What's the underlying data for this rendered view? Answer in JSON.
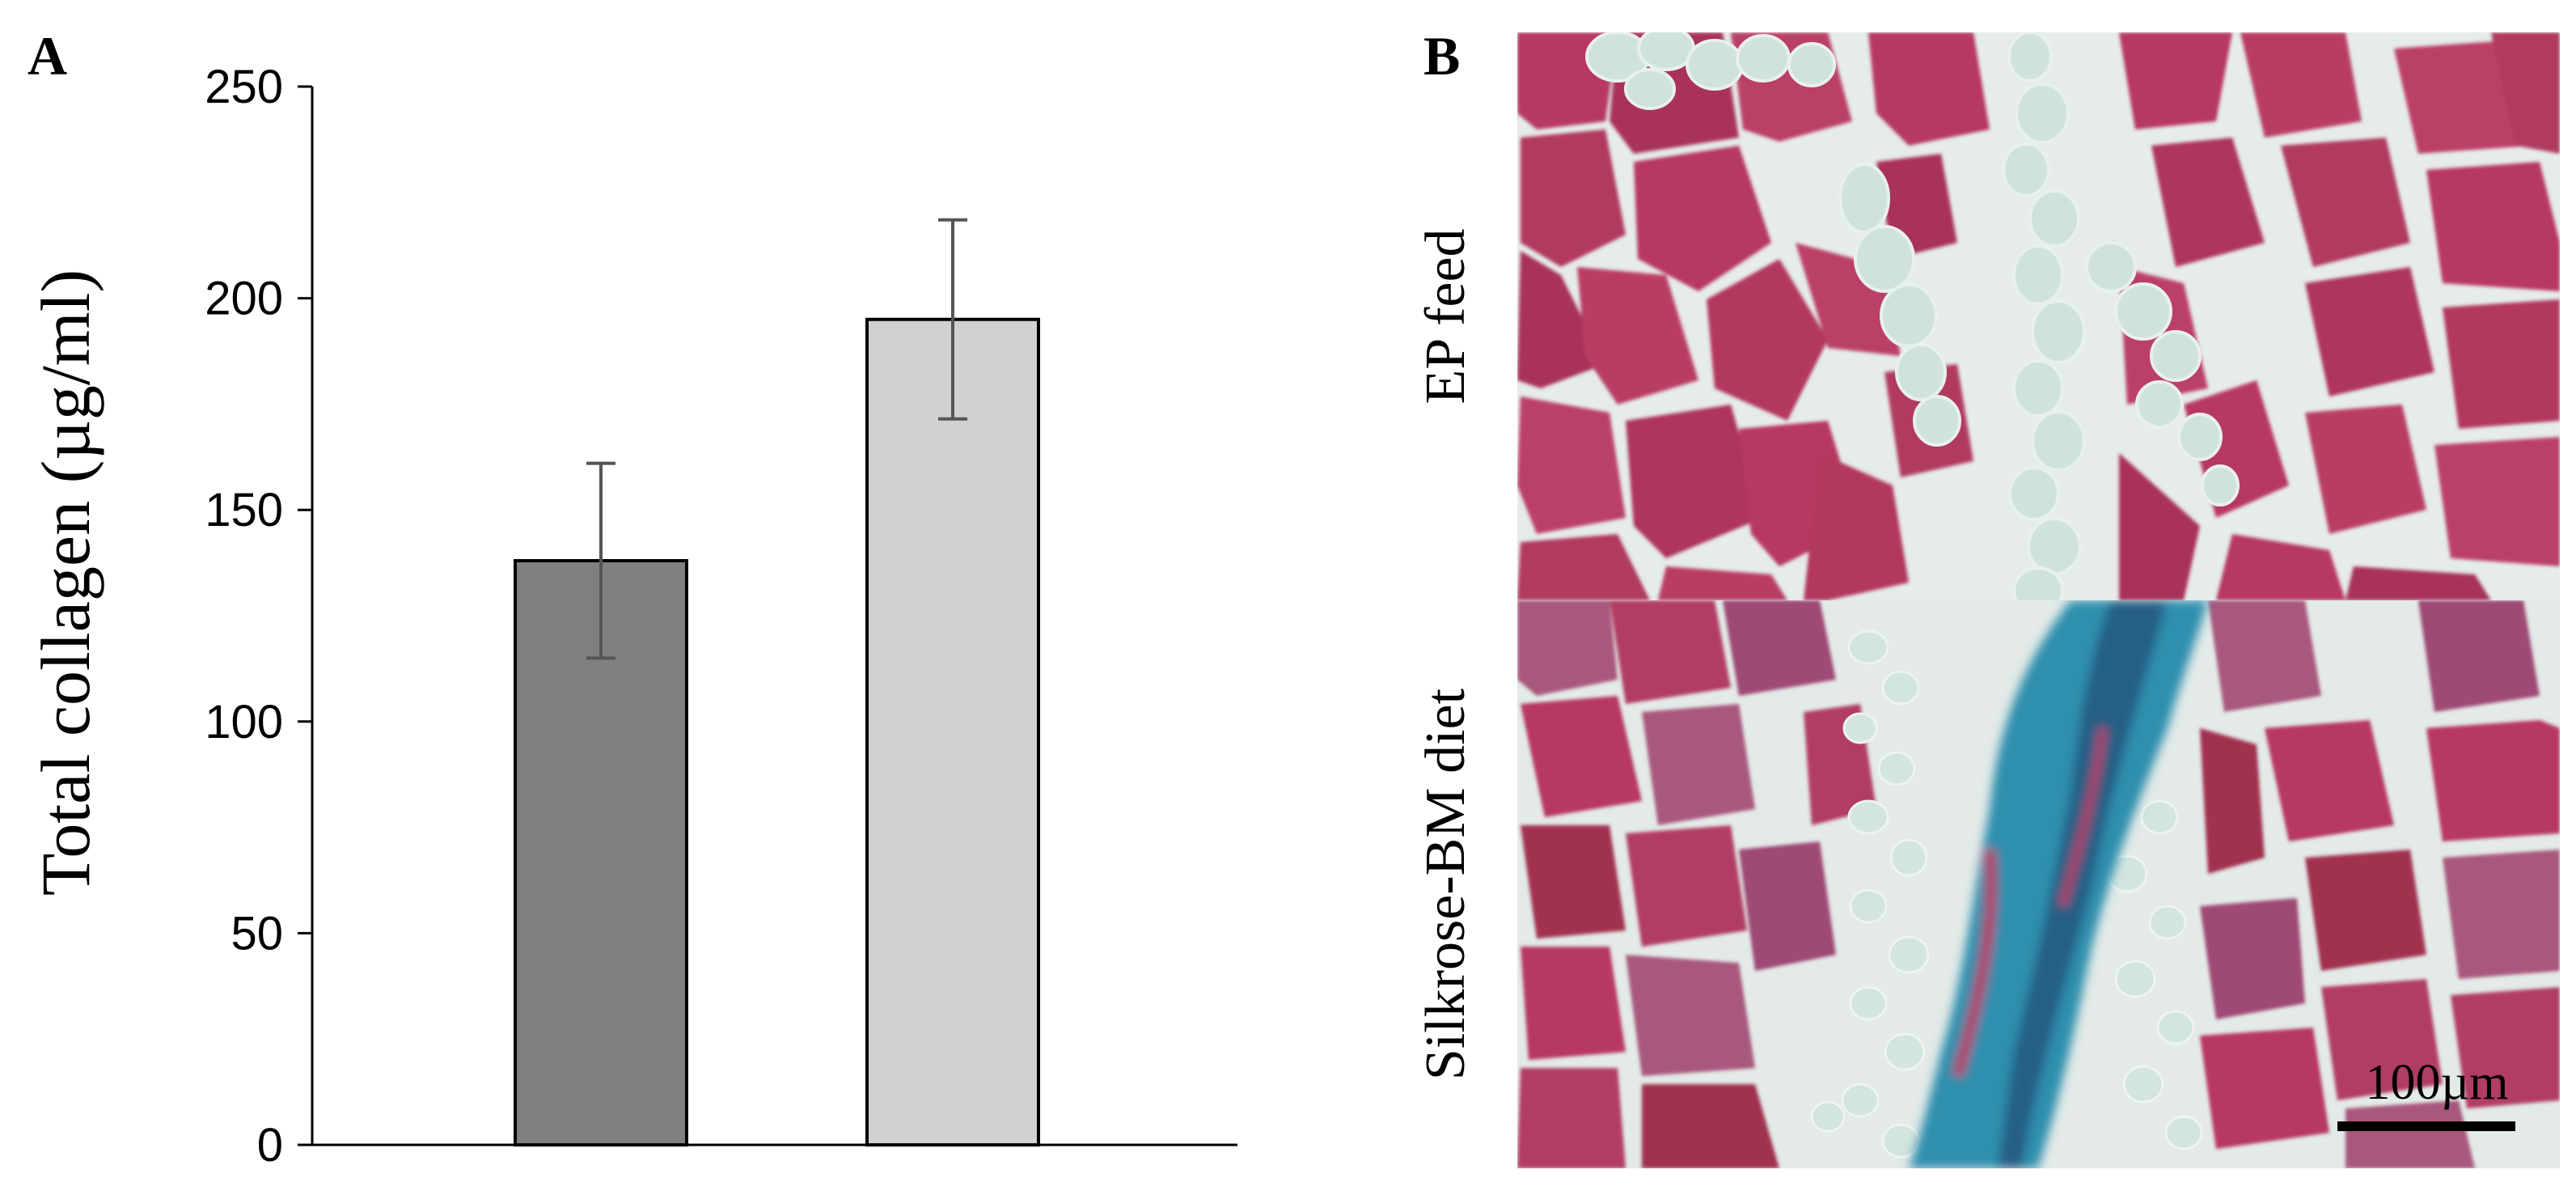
{
  "panels": {
    "a_label": "A",
    "b_label": "B"
  },
  "chart_data": {
    "type": "bar",
    "categories": [
      "",
      ""
    ],
    "values": [
      138,
      195
    ],
    "errors": [
      23,
      23.5
    ],
    "bar_colors": [
      "#808080",
      "#d3d0d2"
    ],
    "title": "",
    "xlabel": "",
    "ylabel": "Total collagen (µg/ml)",
    "ylim": [
      0,
      250
    ],
    "yticks": [
      "0",
      "50",
      "100",
      "150",
      "200",
      "250"
    ],
    "grid": false
  },
  "histology": {
    "top_label": "EP feed",
    "bottom_label": "Silkrose-BM diet",
    "scale_bar_label": "100µm",
    "colors": {
      "muscle": "#b73860",
      "muscle_dark": "#a1304f",
      "adipose": "#cfe3dc",
      "membrane": "#e4e8e8",
      "collagen": "#2f8fae",
      "collagen_dark": "#255f85",
      "background_stain": "#a9597d"
    }
  }
}
